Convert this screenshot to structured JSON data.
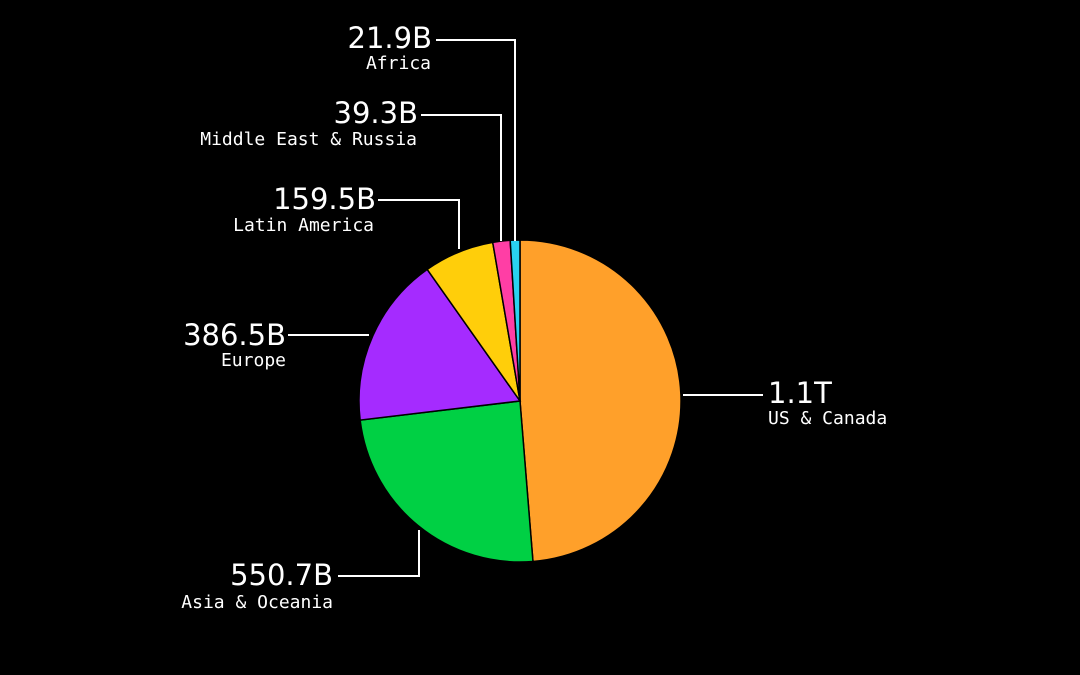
{
  "chart_data": {
    "type": "pie",
    "title": "",
    "slices": [
      {
        "name": "US & Canada",
        "value_label": "1.1T",
        "value": 1100,
        "color": "#ffa02a"
      },
      {
        "name": "Asia & Oceania",
        "value_label": "550.7B",
        "value": 550.7,
        "color": "#00d044"
      },
      {
        "name": "Europe",
        "value_label": "386.5B",
        "value": 386.5,
        "color": "#a52bff"
      },
      {
        "name": "Latin America",
        "value_label": "159.5B",
        "value": 159.5,
        "color": "#ffce0a"
      },
      {
        "name": "Middle East & Russia",
        "value_label": "39.3B",
        "value": 39.3,
        "color": "#ff3ea5"
      },
      {
        "name": "Africa",
        "value_label": "21.9B",
        "value": 21.9,
        "color": "#29d2f0"
      }
    ],
    "start": "12 o'clock",
    "direction": "clockwise",
    "background": "#000000",
    "label_color": "#ffffff"
  }
}
